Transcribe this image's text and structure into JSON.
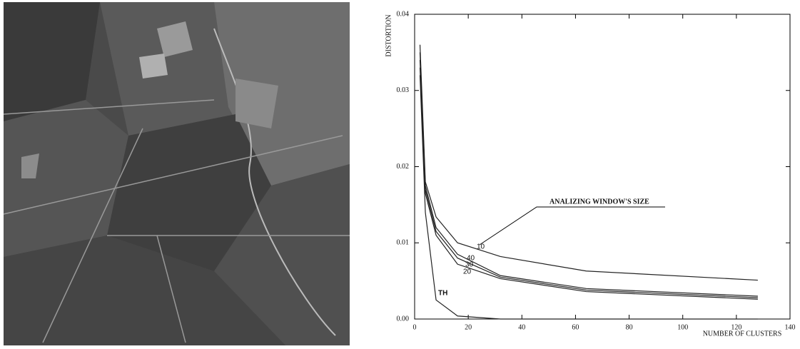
{
  "chart_data": {
    "type": "line",
    "xlabel": "NUMBER OF CLUSTERS",
    "ylabel": "DISTORTION",
    "annotation": "ANALIZING WINDOW'S SIZE",
    "xlim": [
      0,
      140
    ],
    "xticks": [
      0,
      20,
      40,
      60,
      80,
      100,
      120,
      140
    ],
    "ylim": [
      0,
      0.04
    ],
    "yticks": [
      {
        "value": 0,
        "label": "0.00"
      },
      0.01,
      0.02,
      0.03,
      0.04
    ],
    "x": [
      2,
      4,
      8,
      16,
      32,
      64,
      128
    ],
    "series": [
      {
        "name": "10",
        "color": "#222222",
        "values": [
          0.036,
          0.018,
          0.0134,
          0.01,
          0.0082,
          0.0063,
          0.0051
        ]
      },
      {
        "name": "40",
        "color": "#222222",
        "values": [
          0.035,
          0.0175,
          0.012,
          0.0085,
          0.0057,
          0.004,
          0.003
        ]
      },
      {
        "name": "30",
        "color": "#222222",
        "values": [
          0.034,
          0.017,
          0.0115,
          0.008,
          0.0055,
          0.0038,
          0.0028
        ]
      },
      {
        "name": "20",
        "color": "#222222",
        "values": [
          0.033,
          0.0165,
          0.011,
          0.0072,
          0.0053,
          0.0036,
          0.0026
        ]
      },
      {
        "name": "TH",
        "color": "#222222",
        "values": [
          0.032,
          0.014,
          0.0025,
          0.0004,
          0,
          0,
          0
        ]
      }
    ]
  }
}
